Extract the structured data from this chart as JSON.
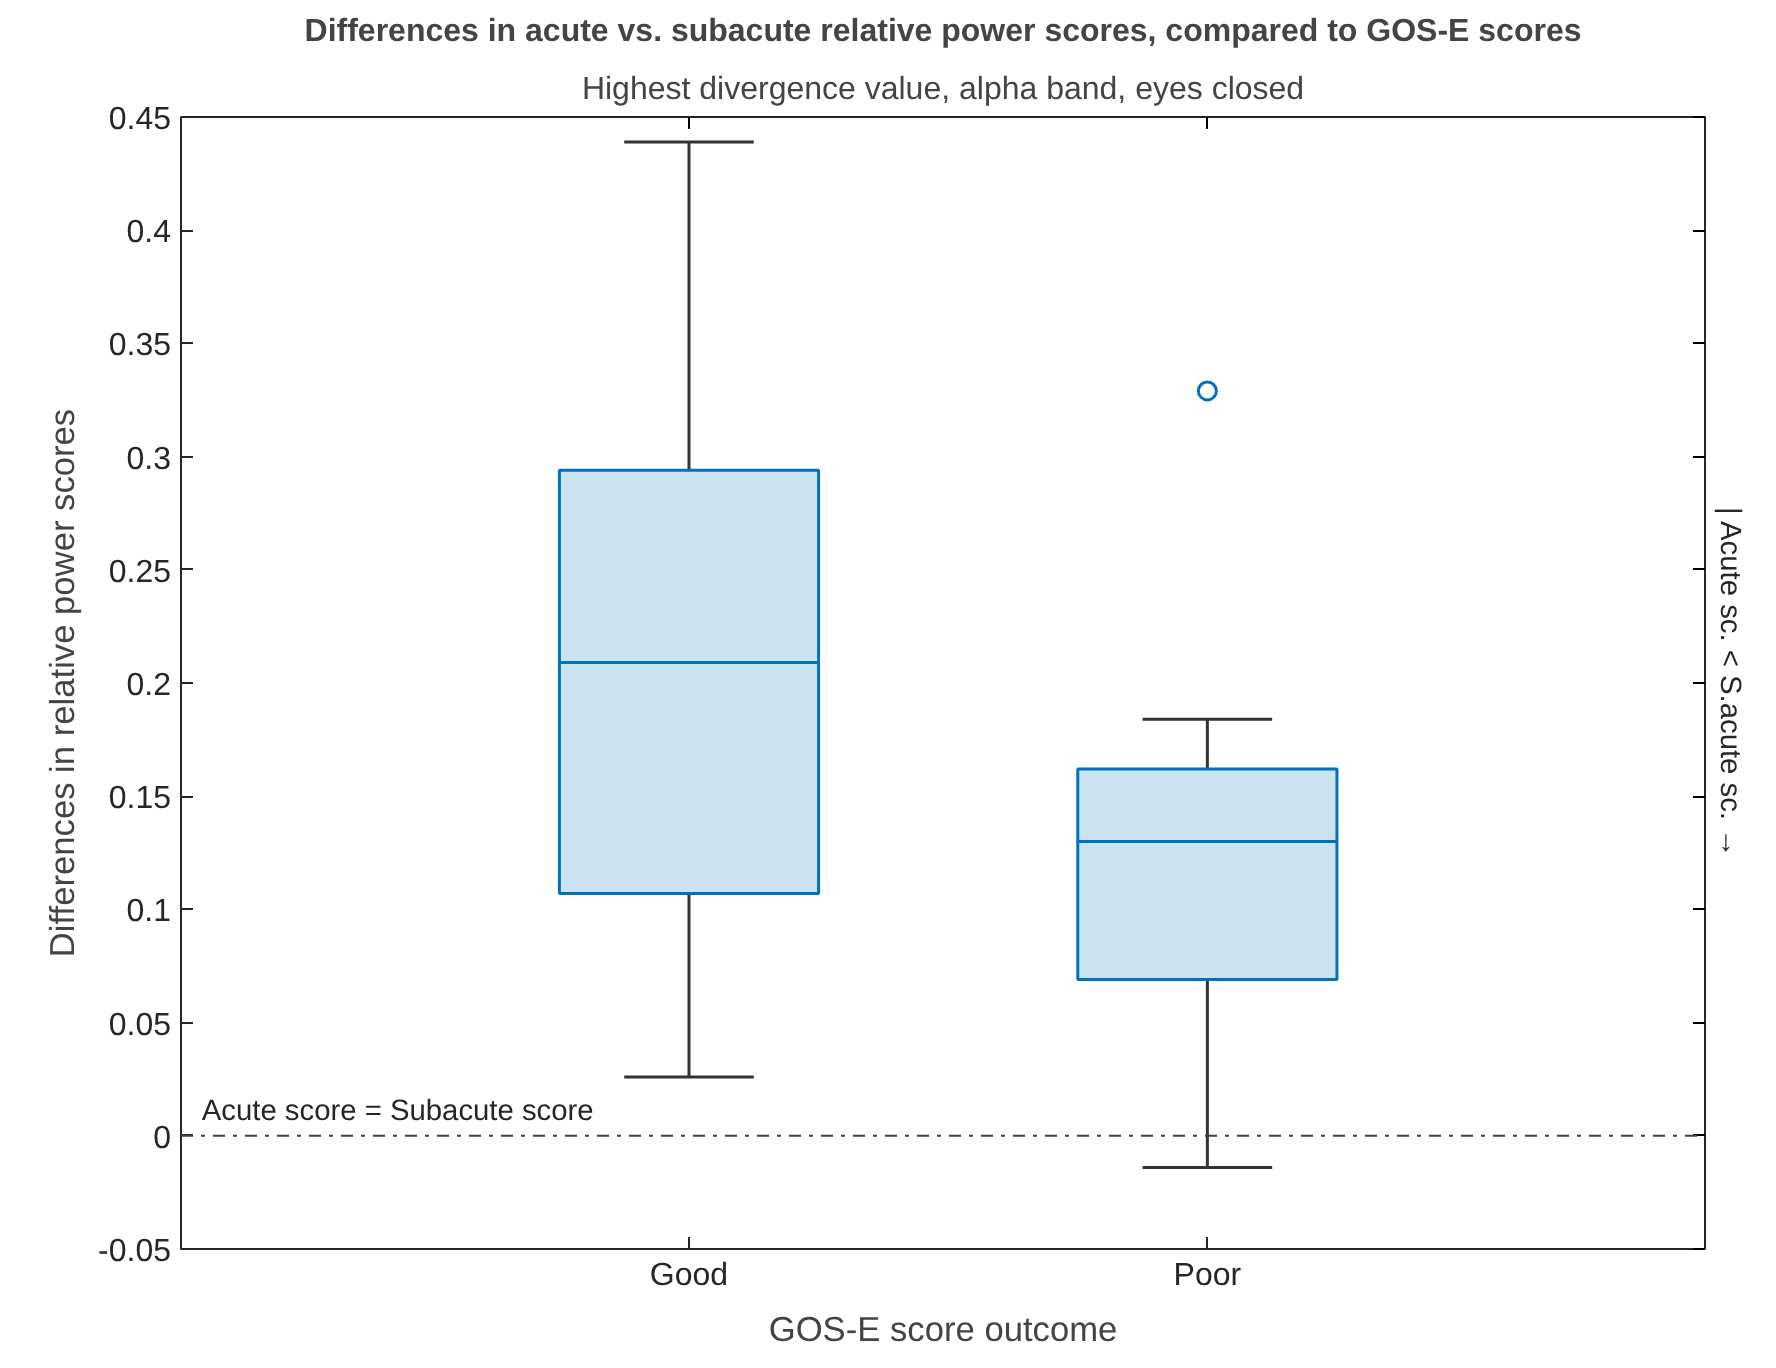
{
  "chart_data": {
    "type": "box",
    "title": "Differences in acute vs. subacute relative power scores, compared to GOS-E scores",
    "subtitle": "Highest divergence value, alpha band, eyes closed",
    "xlabel": "GOS-E score outcome",
    "ylabel": "Differences in relative power scores",
    "categories": [
      "Good",
      "Poor"
    ],
    "boxes": [
      {
        "low": 0.026,
        "q1": 0.107,
        "median": 0.209,
        "q3": 0.294,
        "high": 0.439
      },
      {
        "low": -0.014,
        "q1": 0.069,
        "median": 0.13,
        "q3": 0.162,
        "high": 0.184,
        "outliers": [
          0.329
        ]
      }
    ],
    "color": "#0072bd",
    "ylim": [
      -0.05,
      0.45
    ],
    "yticks": [
      -0.05,
      0,
      0.05,
      0.1,
      0.15,
      0.2,
      0.25,
      0.3,
      0.35,
      0.4,
      0.45
    ],
    "ref_lines": [
      {
        "axis": "y",
        "value": 0,
        "label": "Acute score = Subacute score",
        "color": "#404040",
        "line_style": "dashdot"
      }
    ],
    "annotations": [
      "| Acute sc. < S.acute sc. →"
    ],
    "grid": false
  }
}
